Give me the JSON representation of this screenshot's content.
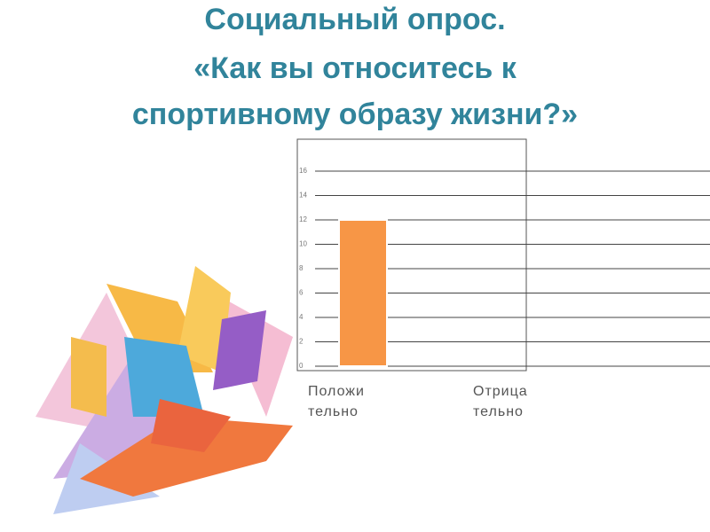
{
  "chart_data": {
    "type": "bar",
    "title": [
      "Социальный опрос.",
      "«Как вы относитесь к",
      "спортивному образу жизни?»"
    ],
    "categories": [
      "Положительно",
      "Отрицательно"
    ],
    "values": [
      12,
      0
    ],
    "color": "#f79646",
    "ylim": [
      0,
      16
    ],
    "yticks": [
      0,
      2,
      4,
      6,
      8,
      10,
      12,
      14,
      16
    ],
    "grid": true
  }
}
